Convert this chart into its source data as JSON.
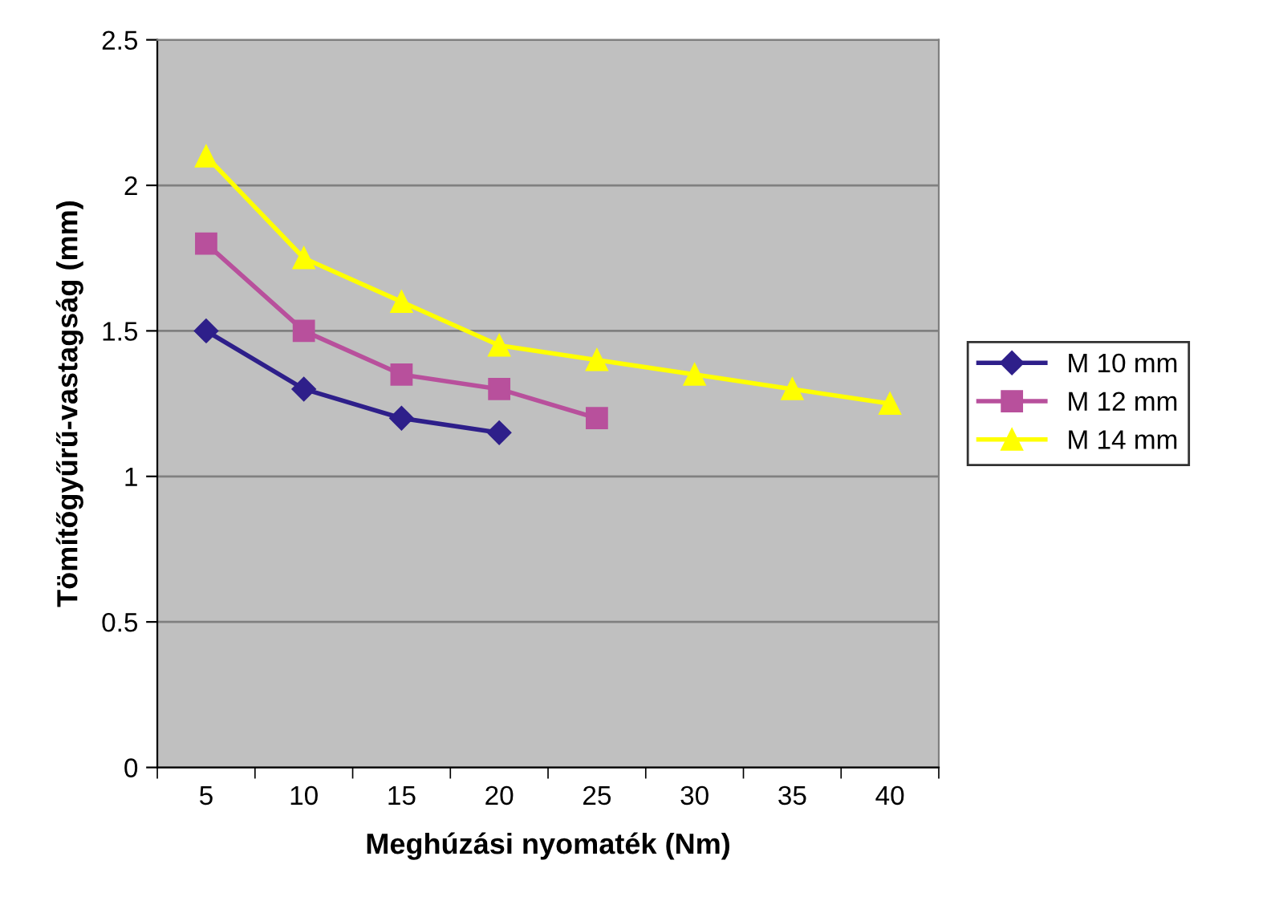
{
  "chart_data": {
    "type": "line",
    "xlabel": "Meghúzási nyomaték (Nm)",
    "ylabel": "Tömítőgyűrű-vastagság (mm)",
    "categories": [
      "5",
      "10",
      "15",
      "20",
      "25",
      "30",
      "35",
      "40"
    ],
    "series": [
      {
        "name": "M 10 mm",
        "color": "#2e1f8a",
        "marker": "diamond",
        "values": [
          1.5,
          1.3,
          1.2,
          1.15,
          null,
          null,
          null,
          null
        ]
      },
      {
        "name": "M 12 mm",
        "color": "#b8509c",
        "marker": "square",
        "values": [
          1.8,
          1.5,
          1.35,
          1.3,
          1.2,
          null,
          null,
          null
        ]
      },
      {
        "name": "M 14 mm",
        "color": "#ffff00",
        "marker": "triangle",
        "values": [
          2.1,
          1.75,
          1.6,
          1.45,
          1.4,
          1.35,
          1.3,
          1.25
        ]
      }
    ],
    "ylim": [
      0,
      2.5
    ],
    "yticks": [
      0,
      0.5,
      1,
      1.5,
      2,
      2.5
    ],
    "grid": "y",
    "legend": "right",
    "line_style": "solid"
  }
}
